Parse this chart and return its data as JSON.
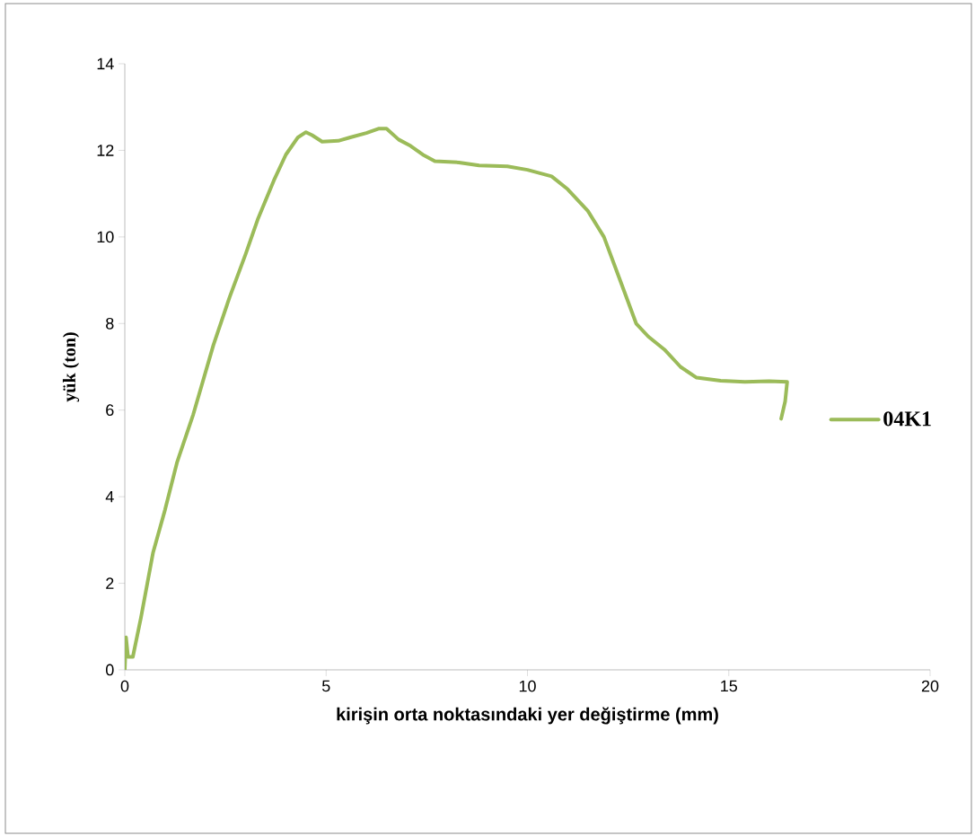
{
  "chart_data": {
    "type": "line",
    "xlabel": "kirişin orta noktasındaki yer değiştirme (mm)",
    "ylabel": "yük (ton)",
    "xlim": [
      0,
      20
    ],
    "ylim": [
      0,
      14
    ],
    "xticks": [
      0,
      5,
      10,
      15,
      20
    ],
    "yticks": [
      0,
      2,
      4,
      6,
      8,
      10,
      12,
      14
    ],
    "grid": false,
    "legend": "right",
    "marker": "none",
    "line_style": "solid",
    "series": [
      {
        "name": "04K1",
        "color": "#9bbb59",
        "x": [
          0,
          0.03,
          0.08,
          0.2,
          0.4,
          0.7,
          1.0,
          1.3,
          1.7,
          2.2,
          2.6,
          3.0,
          3.3,
          3.7,
          4.0,
          4.3,
          4.5,
          4.65,
          4.9,
          5.3,
          5.6,
          6.0,
          6.3,
          6.5,
          6.8,
          7.1,
          7.4,
          7.7,
          8.3,
          8.8,
          9.5,
          10.0,
          10.6,
          11.0,
          11.5,
          11.9,
          12.3,
          12.7,
          13.0,
          13.4,
          13.8,
          14.2,
          14.8,
          15.4,
          16.0,
          16.45,
          16.4,
          16.3
        ],
        "values": [
          0,
          0.75,
          0.3,
          0.3,
          1.2,
          2.7,
          3.7,
          4.8,
          5.9,
          7.5,
          8.6,
          9.6,
          10.4,
          11.3,
          11.9,
          12.3,
          12.42,
          12.35,
          12.2,
          12.22,
          12.3,
          12.4,
          12.5,
          12.5,
          12.25,
          12.1,
          11.9,
          11.75,
          11.72,
          11.65,
          11.63,
          11.55,
          11.4,
          11.1,
          10.6,
          10.0,
          9.0,
          8.0,
          7.7,
          7.4,
          7.0,
          6.75,
          6.68,
          6.65,
          6.67,
          6.65,
          6.2,
          5.8
        ]
      }
    ]
  }
}
